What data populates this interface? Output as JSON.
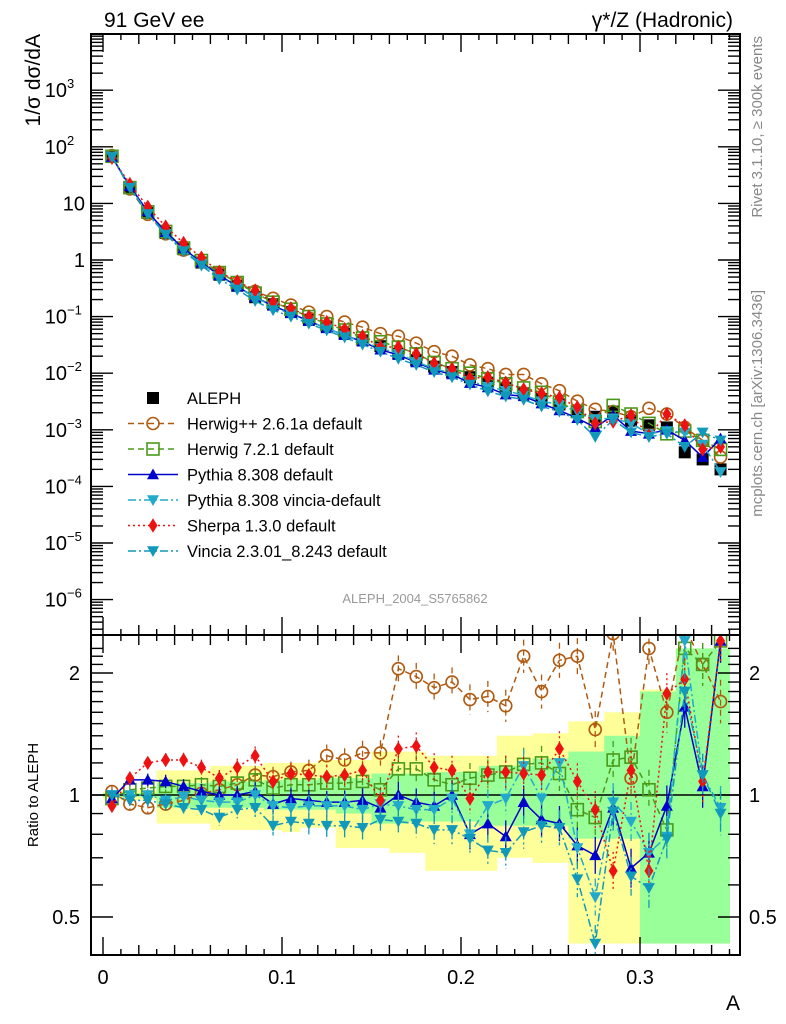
{
  "header": {
    "left_title": "91 GeV ee",
    "right_title": "γ*/Z (Hadronic)"
  },
  "side_labels": {
    "rivet": "Rivet 3.1.10, ≥ 300k events",
    "mcplots": "mcplots.cern.ch [arXiv:1306.3436]"
  },
  "analysis_id": "ALEPH_2004_S5765862",
  "chart_data": [
    {
      "type": "line",
      "panel": "main",
      "title": "91 GeV ee",
      "ylabel": "1/σ  dσ/dA",
      "xlabel": "A",
      "yscale": "log",
      "xlim": [
        -0.003,
        0.36
      ],
      "ylim": [
        2.5e-07,
        9000
      ],
      "x_ticks": [
        "0",
        "0.1",
        "0.2",
        "0.3"
      ],
      "y_ticks": [
        "10^-6",
        "10^-5",
        "10^-4",
        "10^-3",
        "10^-2",
        "10^-1",
        "1",
        "10",
        "10^2",
        "10^3"
      ],
      "legend_position": "center-left",
      "x": [
        0.005,
        0.015,
        0.025,
        0.035,
        0.045,
        0.055,
        0.065,
        0.075,
        0.085,
        0.095,
        0.105,
        0.115,
        0.125,
        0.135,
        0.145,
        0.155,
        0.165,
        0.175,
        0.185,
        0.195,
        0.205,
        0.215,
        0.225,
        0.235,
        0.245,
        0.255,
        0.265,
        0.275,
        0.285,
        0.295,
        0.305,
        0.315,
        0.325,
        0.335,
        0.345
      ],
      "series": [
        {
          "name": "ALEPH",
          "style": "data",
          "color": "#000000",
          "marker": "square-filled",
          "line": "none",
          "values": [
            68,
            19,
            6.8,
            3.0,
            1.55,
            0.9,
            0.55,
            0.35,
            0.22,
            0.165,
            0.12,
            0.088,
            0.066,
            0.05,
            0.038,
            0.03,
            0.022,
            0.017,
            0.013,
            0.0105,
            0.0085,
            0.0068,
            0.0055,
            0.0044,
            0.0035,
            0.0028,
            0.0022,
            0.0017,
            0.0021,
            0.00145,
            0.0012,
            0.0011,
            0.0004,
            0.0003,
            0.0002
          ]
        },
        {
          "name": "Herwig++ 2.6.1a default",
          "color": "#b05a10",
          "marker": "circle-open",
          "line": "dashed",
          "values": [
            70,
            18,
            6.4,
            2.9,
            1.5,
            0.92,
            0.6,
            0.4,
            0.28,
            0.21,
            0.16,
            0.12,
            0.1,
            0.08,
            0.065,
            0.05,
            0.045,
            0.034,
            0.024,
            0.02,
            0.014,
            0.012,
            0.0095,
            0.0095,
            0.0065,
            0.0049,
            0.0032,
            0.0023,
            0.0021,
            0.0017,
            0.0024,
            0.0019,
            0.0011,
            0.00065,
            0.00033
          ]
        },
        {
          "name": "Herwig 7.2.1 default",
          "color": "#4a9a1a",
          "marker": "square-open",
          "line": "dashed",
          "values": [
            68,
            19,
            7.1,
            3.2,
            1.63,
            0.98,
            0.6,
            0.4,
            0.26,
            0.18,
            0.135,
            0.1,
            0.074,
            0.058,
            0.042,
            0.036,
            0.029,
            0.022,
            0.0155,
            0.012,
            0.01,
            0.008,
            0.0065,
            0.0055,
            0.0046,
            0.0031,
            0.0021,
            0.0014,
            0.0027,
            0.0019,
            0.0013,
            0.00085,
            0.00095,
            0.00065,
            0.00045
          ]
        },
        {
          "name": "Pythia 8.308 default",
          "color": "#0000cc",
          "marker": "triangle-up-filled",
          "line": "solid",
          "values": [
            66,
            20,
            7.2,
            3.1,
            1.6,
            0.9,
            0.54,
            0.34,
            0.22,
            0.155,
            0.115,
            0.083,
            0.062,
            0.047,
            0.036,
            0.026,
            0.021,
            0.0155,
            0.0115,
            0.0095,
            0.0067,
            0.0056,
            0.0042,
            0.0039,
            0.0029,
            0.0022,
            0.0016,
            0.0011,
            0.0018,
            0.00095,
            0.00085,
            0.001,
            0.00065,
            0.00033,
            0.0007
          ]
        },
        {
          "name": "Pythia 8.308 vincia-default",
          "color": "#22aacc",
          "marker": "triangle-down-filled",
          "line": "dash-dot",
          "values": [
            68,
            19.5,
            6.6,
            2.9,
            1.5,
            0.86,
            0.52,
            0.33,
            0.22,
            0.15,
            0.11,
            0.083,
            0.062,
            0.047,
            0.035,
            0.028,
            0.022,
            0.016,
            0.012,
            0.01,
            0.0073,
            0.0058,
            0.0049,
            0.0041,
            0.0032,
            0.0028,
            0.0021,
            0.00155,
            0.0016,
            0.0013,
            0.00085,
            0.00095,
            0.0009,
            0.00055,
            0.00018
          ]
        },
        {
          "name": "Sherpa 1.3.0 default",
          "color": "#ee1111",
          "marker": "diamond-filled",
          "line": "dotted",
          "values": [
            64,
            22,
            8.7,
            3.9,
            2.0,
            1.1,
            0.62,
            0.42,
            0.29,
            0.18,
            0.14,
            0.1,
            0.08,
            0.06,
            0.045,
            0.029,
            0.029,
            0.022,
            0.015,
            0.012,
            0.0082,
            0.0085,
            0.0068,
            0.0052,
            0.0044,
            0.0037,
            0.0025,
            0.0013,
            0.0014,
            0.0018,
            0.0008,
            0.0019,
            0.0012,
            0.00045,
            0.0005
          ]
        },
        {
          "name": "Vincia 2.3.01_8.243 default",
          "color": "#1199bb",
          "marker": "triangle-down-filled",
          "line": "dash-dot",
          "values": [
            66,
            19,
            6.5,
            2.8,
            1.43,
            0.8,
            0.46,
            0.3,
            0.19,
            0.13,
            0.1,
            0.075,
            0.057,
            0.043,
            0.032,
            0.024,
            0.018,
            0.014,
            0.0105,
            0.0085,
            0.0063,
            0.0048,
            0.0039,
            0.0034,
            0.0026,
            0.0021,
            0.0015,
            0.00075,
            0.0015,
            0.0009,
            0.00075,
            0.00085,
            0.0005,
            0.0009,
            0.00065
          ]
        }
      ]
    },
    {
      "type": "line",
      "panel": "ratio",
      "ylabel": "Ratio to ALEPH",
      "xlabel": "A",
      "yscale": "log",
      "xlim": [
        -0.003,
        0.36
      ],
      "ylim": [
        0.43,
        2.3
      ],
      "y_ticks": [
        "0.5",
        "1",
        "2"
      ],
      "x_ticks": [
        "0",
        "0.1",
        "0.2",
        "0.3"
      ],
      "reference_line": 1,
      "x": [
        0.005,
        0.015,
        0.025,
        0.035,
        0.045,
        0.055,
        0.065,
        0.075,
        0.085,
        0.095,
        0.105,
        0.115,
        0.125,
        0.135,
        0.145,
        0.155,
        0.165,
        0.175,
        0.185,
        0.195,
        0.205,
        0.215,
        0.225,
        0.235,
        0.245,
        0.255,
        0.265,
        0.275,
        0.285,
        0.295,
        0.305,
        0.315,
        0.325,
        0.335,
        0.345
      ],
      "bands": {
        "stat_syst_outer": {
          "color": "#ffff99",
          "lo": [
            0.98,
            0.97,
            0.97,
            0.85,
            0.85,
            0.85,
            0.82,
            0.82,
            0.82,
            0.82,
            0.81,
            0.83,
            0.83,
            0.74,
            0.74,
            0.74,
            0.72,
            0.72,
            0.65,
            0.65,
            0.65,
            0.65,
            0.7,
            0.7,
            0.68,
            0.68,
            0.43,
            0.43,
            0.43,
            0.43,
            0.43,
            0.43,
            0.43,
            0.43,
            0.43
          ],
          "hi": [
            1.02,
            1.03,
            1.03,
            1.15,
            1.15,
            1.15,
            1.18,
            1.18,
            1.18,
            1.2,
            1.2,
            1.2,
            1.22,
            1.22,
            1.22,
            1.28,
            1.28,
            1.28,
            1.25,
            1.25,
            1.25,
            1.25,
            1.4,
            1.4,
            1.42,
            1.42,
            1.52,
            1.52,
            1.6,
            1.6,
            1.82,
            1.82,
            2.3,
            2.3,
            2.3
          ]
        },
        "stat_inner": {
          "color": "#99ff99",
          "lo": [
            0.99,
            0.99,
            0.99,
            0.93,
            0.93,
            0.93,
            0.93,
            0.93,
            0.93,
            0.92,
            0.92,
            0.92,
            0.92,
            0.9,
            0.9,
            0.85,
            0.85,
            0.86,
            0.86,
            0.86,
            0.86,
            0.84,
            0.84,
            0.84,
            0.84,
            0.84,
            0.78,
            0.78,
            0.78,
            0.78,
            0.43,
            0.43,
            0.43,
            0.43,
            0.43
          ],
          "hi": [
            1.01,
            1.01,
            1.01,
            1.07,
            1.07,
            1.07,
            1.08,
            1.08,
            1.08,
            1.09,
            1.09,
            1.09,
            1.1,
            1.1,
            1.1,
            1.13,
            1.13,
            1.13,
            1.14,
            1.14,
            1.14,
            1.18,
            1.18,
            1.18,
            1.23,
            1.23,
            1.28,
            1.28,
            1.4,
            1.4,
            1.8,
            1.8,
            2.3,
            2.3,
            2.3
          ]
        }
      },
      "series": [
        {
          "name": "Herwig++ 2.6.1a default",
          "color": "#b05a10",
          "marker": "circle-open",
          "line": "dashed",
          "values": [
            1.02,
            0.95,
            0.93,
            0.95,
            0.97,
            1.01,
            1.03,
            1.06,
            1.12,
            1.11,
            1.14,
            1.15,
            1.25,
            1.22,
            1.27,
            1.27,
            2.05,
            1.96,
            1.84,
            1.9,
            1.72,
            1.75,
            1.66,
            2.2,
            1.8,
            2.15,
            2.2,
            1.45,
            2.5,
            1.1,
            2.3,
            1.6,
            2.6,
            2.1,
            1.7
          ]
        },
        {
          "name": "Herwig 7.2.1 default",
          "color": "#4a9a1a",
          "marker": "square-open",
          "line": "dashed",
          "values": [
            0.98,
            1.03,
            1.04,
            1.05,
            1.05,
            1.06,
            1.05,
            1.07,
            1.09,
            1.04,
            1.06,
            1.06,
            1.07,
            1.07,
            1.08,
            1.03,
            1.16,
            1.16,
            1.09,
            1.06,
            1.1,
            1.12,
            1.14,
            1.19,
            1.2,
            1.13,
            0.92,
            0.88,
            1.22,
            1.24,
            1.03,
            0.82,
            2.3,
            2.1,
            2.4
          ]
        },
        {
          "name": "Pythia 8.308 default",
          "color": "#0000cc",
          "marker": "triangle-up-filled",
          "line": "solid",
          "values": [
            0.98,
            1.09,
            1.09,
            1.08,
            1.05,
            1.02,
            1.0,
            1.0,
            1.02,
            0.95,
            0.98,
            0.97,
            0.96,
            0.96,
            0.97,
            0.93,
            1.0,
            0.96,
            0.94,
            1.0,
            0.8,
            0.85,
            0.79,
            0.96,
            0.87,
            0.85,
            0.75,
            0.71,
            0.93,
            0.66,
            0.72,
            0.94,
            1.65,
            1.05,
            2.4
          ]
        },
        {
          "name": "Pythia 8.308 vincia-default",
          "color": "#22aacc",
          "marker": "triangle-down-filled",
          "line": "dash-dot",
          "values": [
            1.0,
            1.0,
            1.0,
            0.97,
            0.99,
            0.97,
            0.96,
            0.96,
            1.0,
            0.94,
            0.93,
            0.94,
            0.94,
            0.94,
            0.92,
            0.95,
            0.94,
            0.92,
            0.92,
            0.98,
            0.8,
            0.94,
            0.98,
            1.18,
            0.98,
            1.2,
            0.74,
            0.56,
            0.96,
            0.86,
            0.72,
            0.79,
            2.4,
            1.12,
            0.93
          ]
        },
        {
          "name": "Sherpa 1.3.0 default",
          "color": "#ee1111",
          "marker": "diamond-filled",
          "line": "dotted",
          "values": [
            0.94,
            1.1,
            1.2,
            1.22,
            1.22,
            1.17,
            1.1,
            1.17,
            1.25,
            1.08,
            1.13,
            1.12,
            1.11,
            1.12,
            1.15,
            0.97,
            1.3,
            1.32,
            1.17,
            1.15,
            0.98,
            1.14,
            1.14,
            1.13,
            1.12,
            1.3,
            1.08,
            0.92,
            0.65,
            1.15,
            0.65,
            1.78,
            1.93,
            1.08,
            2.4
          ]
        },
        {
          "name": "Vincia 2.3.01_8.243 default",
          "color": "#1199bb",
          "marker": "triangle-down-filled",
          "line": "dash-dot",
          "values": [
            1.0,
            0.97,
            0.97,
            0.95,
            0.93,
            0.92,
            0.88,
            0.92,
            0.93,
            0.84,
            0.86,
            0.85,
            0.84,
            0.84,
            0.83,
            0.87,
            0.86,
            0.85,
            0.82,
            0.82,
            0.78,
            0.73,
            0.72,
            0.81,
            0.84,
            0.83,
            0.62,
            0.43,
            0.91,
            0.63,
            0.59,
            0.78,
            1.8,
            1.12,
            0.9
          ]
        }
      ]
    }
  ]
}
